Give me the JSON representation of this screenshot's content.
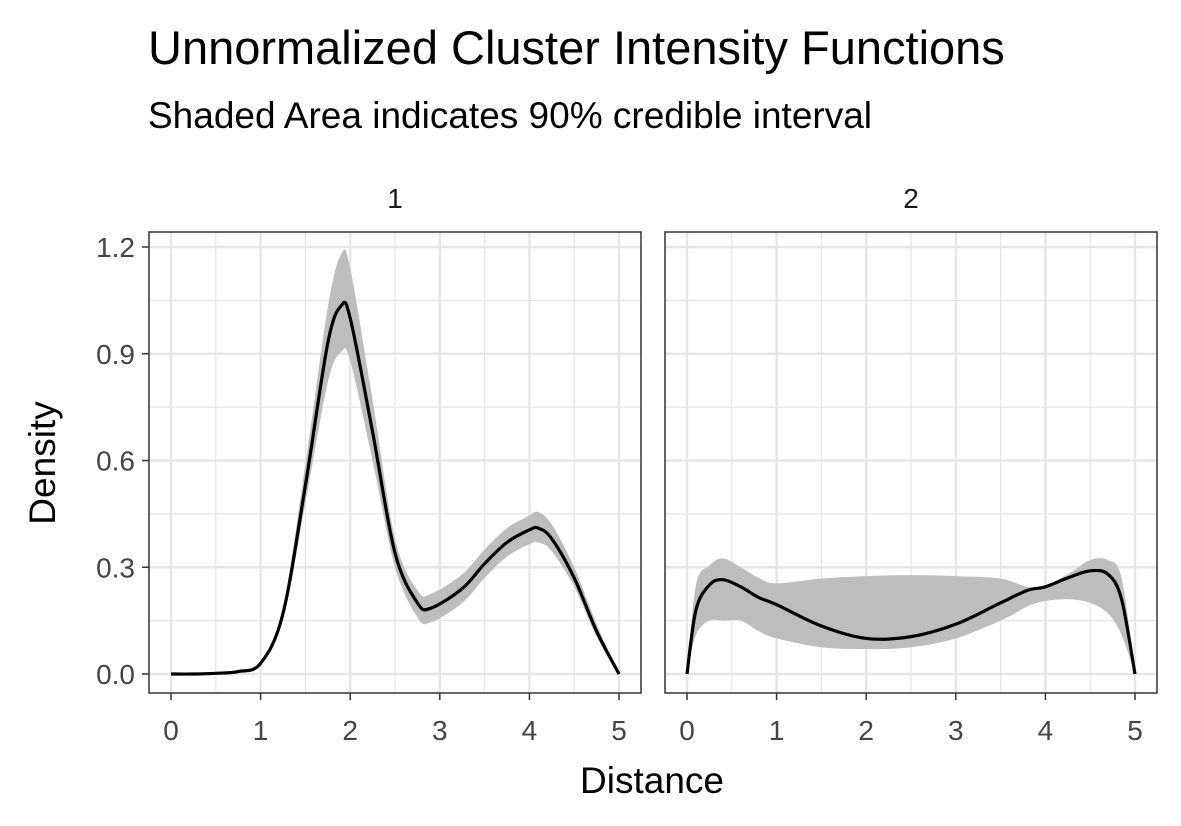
{
  "chart_data": {
    "type": "line",
    "title": "Unnormalized Cluster Intensity Functions",
    "subtitle": "Shaded Area indicates 90% credible interval",
    "xlabel": "Distance",
    "ylabel": "Density",
    "xlim": [
      0,
      5
    ],
    "ylim": [
      0,
      1.2
    ],
    "x_ticks": [
      0,
      1,
      2,
      3,
      4,
      5
    ],
    "y_ticks": [
      0.0,
      0.3,
      0.6,
      0.9,
      1.2
    ],
    "y_tick_labels": [
      "0.0",
      "0.3",
      "0.6",
      "0.9",
      "1.2"
    ],
    "grid": true,
    "colors": {
      "line": "#000000",
      "ribbon": "#bdbdbd",
      "grid": "#e6e6e6",
      "panel_border": "#333333"
    },
    "panels": [
      {
        "label": "1",
        "x": [
          0,
          0.25,
          0.5,
          0.75,
          1.0,
          1.25,
          1.5,
          1.75,
          1.9,
          2.0,
          2.25,
          2.5,
          2.75,
          2.9,
          3.25,
          3.5,
          3.75,
          4.0,
          4.1,
          4.25,
          4.5,
          4.75,
          5.0
        ],
        "mean": [
          0.0,
          0.0,
          0.002,
          0.007,
          0.03,
          0.17,
          0.53,
          0.93,
          1.035,
          1.0,
          0.68,
          0.34,
          0.2,
          0.185,
          0.24,
          0.31,
          0.37,
          0.405,
          0.41,
          0.38,
          0.27,
          0.12,
          0.0
        ],
        "lower": [
          0.0,
          0.0,
          0.001,
          0.006,
          0.027,
          0.155,
          0.48,
          0.82,
          0.905,
          0.88,
          0.6,
          0.3,
          0.16,
          0.145,
          0.2,
          0.27,
          0.33,
          0.365,
          0.37,
          0.345,
          0.245,
          0.105,
          0.0
        ],
        "upper": [
          0.0,
          0.0,
          0.003,
          0.009,
          0.034,
          0.19,
          0.59,
          1.03,
          1.18,
          1.14,
          0.77,
          0.38,
          0.235,
          0.225,
          0.28,
          0.35,
          0.41,
          0.445,
          0.455,
          0.42,
          0.3,
          0.14,
          0.0
        ]
      },
      {
        "label": "2",
        "x": [
          0,
          0.1,
          0.25,
          0.4,
          0.6,
          0.8,
          1.0,
          1.5,
          2.0,
          2.5,
          3.0,
          3.5,
          3.8,
          4.0,
          4.25,
          4.5,
          4.7,
          4.85,
          5.0
        ],
        "mean": [
          0.0,
          0.18,
          0.25,
          0.265,
          0.245,
          0.215,
          0.195,
          0.135,
          0.1,
          0.105,
          0.14,
          0.2,
          0.235,
          0.245,
          0.27,
          0.29,
          0.28,
          0.21,
          0.0
        ],
        "lower": [
          0.0,
          0.11,
          0.15,
          0.15,
          0.15,
          0.12,
          0.1,
          0.075,
          0.07,
          0.075,
          0.1,
          0.15,
          0.19,
          0.205,
          0.21,
          0.2,
          0.17,
          0.11,
          0.0
        ],
        "upper": [
          0.0,
          0.25,
          0.305,
          0.325,
          0.3,
          0.27,
          0.255,
          0.268,
          0.275,
          0.278,
          0.275,
          0.268,
          0.245,
          0.25,
          0.28,
          0.32,
          0.32,
          0.27,
          0.0
        ]
      }
    ]
  }
}
